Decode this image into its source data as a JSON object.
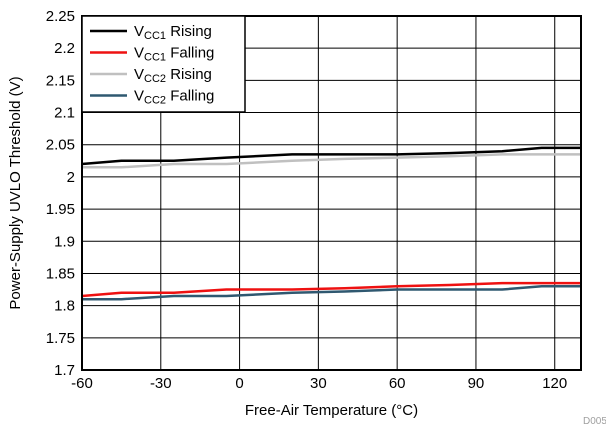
{
  "chart_data": {
    "type": "line",
    "xlabel": "Free-Air Temperature (°C)",
    "ylabel": "Power-Supply UVLO Threshold (V)",
    "xlim": [
      -60,
      130
    ],
    "ylim": [
      1.7,
      2.25
    ],
    "x_ticks": [
      -60,
      -30,
      0,
      30,
      60,
      90,
      120
    ],
    "x_tick_labels": [
      "-60",
      "-30",
      "0",
      "30",
      "60",
      "90",
      "120"
    ],
    "y_ticks": [
      1.7,
      1.75,
      1.8,
      1.85,
      1.9,
      1.95,
      2.0,
      2.05,
      2.1,
      2.15,
      2.2,
      2.25
    ],
    "y_tick_labels": [
      "1.7",
      "1.75",
      "1.8",
      "1.85",
      "1.9",
      "1.95",
      "2",
      "2.05",
      "2.1",
      "2.15",
      "2.2",
      "2.25"
    ],
    "grid": true,
    "legend_position": "top-left",
    "series": [
      {
        "name": "VCC1 Rising",
        "legend_main": "V",
        "legend_sub": "CC1",
        "legend_rest": " Rising",
        "color": "#000000",
        "x": [
          -60,
          -45,
          -25,
          -5,
          20,
          40,
          60,
          80,
          100,
          115,
          130
        ],
        "y": [
          2.02,
          2.025,
          2.025,
          2.03,
          2.035,
          2.035,
          2.035,
          2.037,
          2.04,
          2.045,
          2.045
        ]
      },
      {
        "name": "VCC1 Falling",
        "legend_main": "V",
        "legend_sub": "CC1",
        "legend_rest": " Falling",
        "color": "#ee1111",
        "x": [
          -60,
          -45,
          -25,
          -5,
          20,
          40,
          60,
          80,
          100,
          115,
          130
        ],
        "y": [
          1.815,
          1.82,
          1.82,
          1.825,
          1.825,
          1.827,
          1.83,
          1.832,
          1.835,
          1.835,
          1.835
        ]
      },
      {
        "name": "VCC2 Rising",
        "legend_main": "V",
        "legend_sub": "CC2",
        "legend_rest": " Rising",
        "color": "#c0c0c0",
        "x": [
          -60,
          -45,
          -25,
          -5,
          20,
          40,
          60,
          80,
          100,
          115,
          130
        ],
        "y": [
          2.015,
          2.015,
          2.02,
          2.02,
          2.025,
          2.028,
          2.03,
          2.032,
          2.035,
          2.035,
          2.035
        ]
      },
      {
        "name": "VCC2 Falling",
        "legend_main": "V",
        "legend_sub": "CC2",
        "legend_rest": " Falling",
        "color": "#2f5870",
        "x": [
          -60,
          -45,
          -25,
          -5,
          20,
          40,
          60,
          80,
          100,
          115,
          130
        ],
        "y": [
          1.81,
          1.81,
          1.815,
          1.815,
          1.82,
          1.822,
          1.825,
          1.825,
          1.825,
          1.83,
          1.83
        ]
      }
    ]
  },
  "corner_code": "D005"
}
